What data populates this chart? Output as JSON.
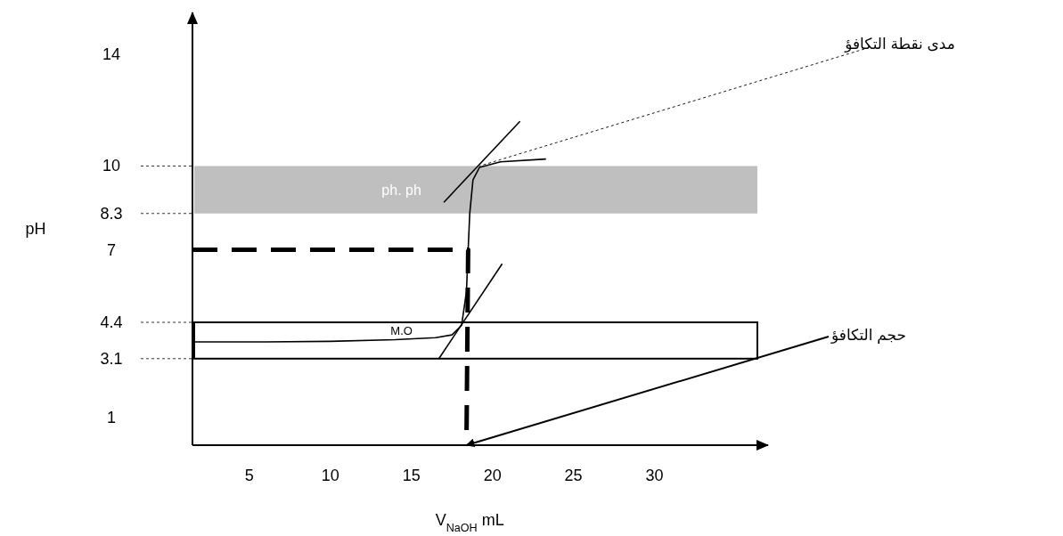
{
  "chart_data": {
    "type": "line",
    "xlabel": "V$_{NaOH}$ mL",
    "ylabel": "pH",
    "xlim": [
      1.5,
      37
    ],
    "xticks": [
      5,
      10,
      15,
      20,
      25,
      30
    ],
    "ylim": [
      0,
      15.5
    ],
    "yticks": [
      1,
      3.1,
      4.4,
      7,
      8.3,
      10,
      14
    ],
    "marker": "none",
    "series": [
      {
        "color": "#000000",
        "line_style": "solid",
        "x": [
          1.6,
          6,
          10,
          14,
          16.5,
          17.5,
          18.1,
          18.4,
          18.5,
          18.6,
          18.8,
          19.2,
          20.5,
          23.3
        ],
        "values": [
          3.7,
          3.7,
          3.72,
          3.78,
          3.85,
          3.95,
          4.3,
          5.5,
          7,
          8.3,
          9.5,
          9.95,
          10.15,
          10.25
        ]
      },
      {
        "color": "#000000",
        "line_style": "solid",
        "x": [
          16.7,
          20.6
        ],
        "values": [
          3.1,
          6.5
        ]
      },
      {
        "color": "#000000",
        "line_style": "solid",
        "x": [
          17.0,
          21.7
        ],
        "values": [
          8.7,
          11.6
        ]
      },
      {
        "color": "#000000",
        "line_style": "dashed",
        "x": [
          1.5,
          18.5,
          18.4
        ],
        "values": [
          7,
          7,
          0
        ]
      }
    ],
    "bands": [
      {
        "axis": "y",
        "from": 8.3,
        "to": 10,
        "label": "ph. ph",
        "color": "#bfbfbf"
      },
      {
        "axis": "y",
        "from": 3.1,
        "to": 4.4,
        "label": "M.O",
        "color": "#ffffff"
      }
    ],
    "annotations": [
      {
        "text": "مدى نقطة التكافؤ",
        "x": 19.2,
        "y": 10
      },
      {
        "text": "حجم التكافؤ",
        "x": 18.4,
        "y": 0
      }
    ]
  }
}
